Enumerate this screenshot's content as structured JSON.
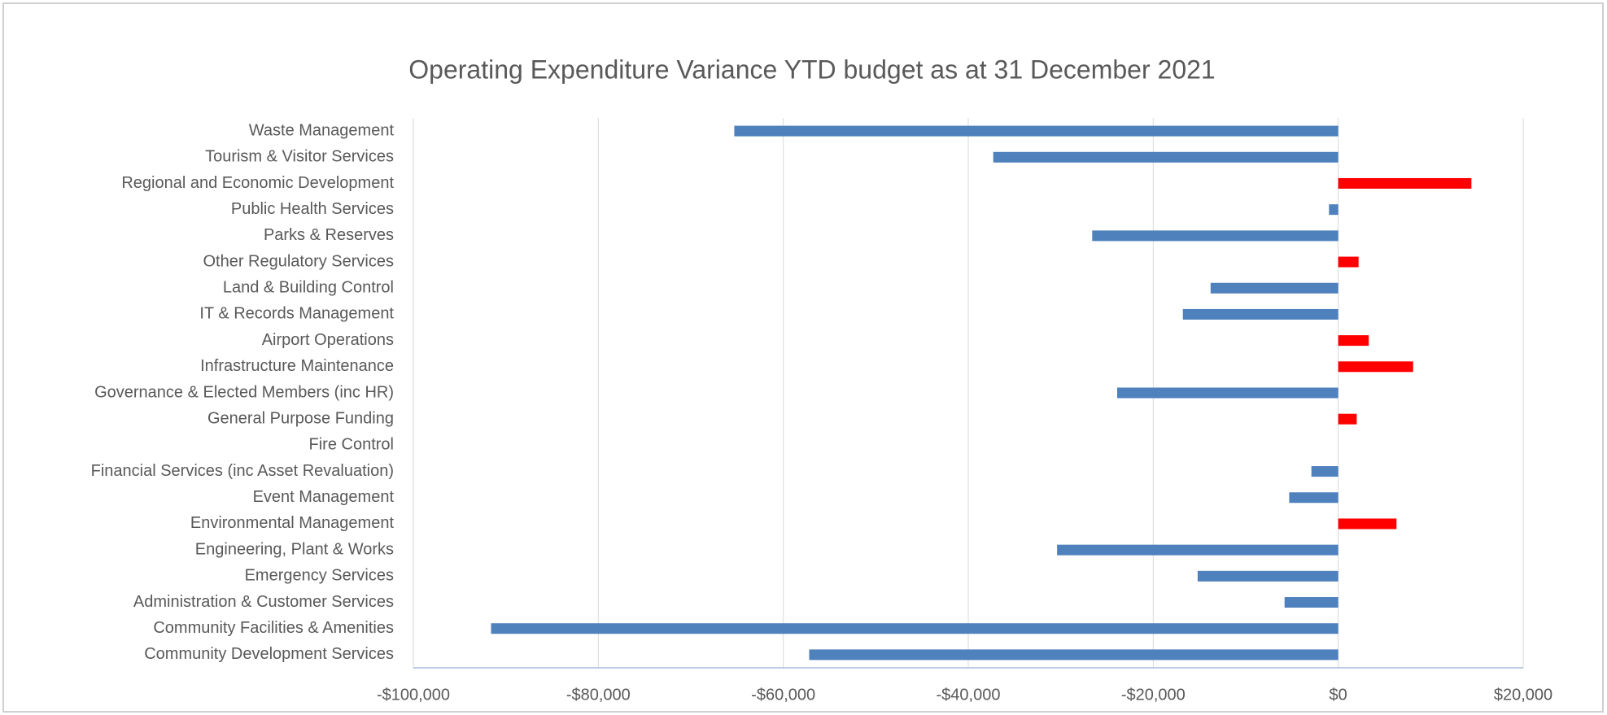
{
  "chart_data": {
    "type": "bar",
    "orientation": "horizontal",
    "title": "Operating Expenditure Variance YTD budget as at 31 December 2021",
    "categories": [
      "Waste Management",
      "Tourism & Visitor Services",
      "Regional and Economic Development",
      "Public Health Services",
      "Parks & Reserves",
      "Other Regulatory Services",
      "Land & Building Control",
      "IT & Records Management",
      "Airport Operations",
      "Infrastructure Maintenance",
      "Governance & Elected Members (inc HR)",
      "General Purpose Funding",
      "Fire Control",
      "Financial Services (inc Asset Revaluation)",
      "Event Management",
      "Environmental Management",
      "Engineering, Plant & Works",
      "Emergency Services",
      "Administration & Customer Services",
      "Community Facilities & Amenities",
      "Community Development Services"
    ],
    "values": [
      -65300,
      -37300,
      14400,
      -1000,
      -26600,
      2200,
      -13800,
      -16800,
      3300,
      8100,
      -23900,
      2000,
      0,
      -2900,
      -5300,
      6300,
      -30400,
      -15200,
      -5800,
      -91600,
      -57200
    ],
    "color": "#4f81bd",
    "positive_color": "#ff0000",
    "xlim": [
      -100000,
      20000
    ],
    "xticks": [
      {
        "value": -100000,
        "label": "-$100,000"
      },
      {
        "value": -80000,
        "label": "-$80,000"
      },
      {
        "value": -60000,
        "label": "-$60,000"
      },
      {
        "value": -40000,
        "label": "-$40,000"
      },
      {
        "value": -20000,
        "label": "-$20,000"
      },
      {
        "value": 0,
        "label": "$0"
      },
      {
        "value": 20000,
        "label": "$20,000"
      }
    ],
    "grid": true
  }
}
